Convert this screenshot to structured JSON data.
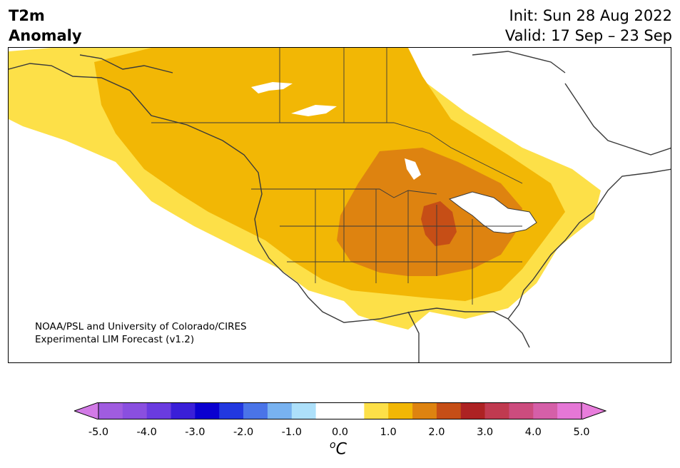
{
  "title": {
    "line1": "T2m",
    "line2": "Anomaly"
  },
  "forecast": {
    "init": "Init: Sun 28 Aug 2022",
    "valid": "Valid: 17 Sep – 23 Sep"
  },
  "credit": {
    "line1": "NOAA/PSL and University of Colorado/CIRES",
    "line2": "Experimental LIM Forecast (v1.2)"
  },
  "colorbar": {
    "unit_prefix": "o",
    "unit_symbol": "C",
    "ticks": [
      "-5.0",
      "-4.0",
      "-3.0",
      "-2.0",
      "-1.0",
      "0.0",
      "1.0",
      "2.0",
      "3.0",
      "4.0",
      "5.0"
    ],
    "bins": [
      {
        "range": [
          -5.0,
          -4.5
        ],
        "color": "#a05ce0"
      },
      {
        "range": [
          -4.5,
          -4.0
        ],
        "color": "#8a4fe0"
      },
      {
        "range": [
          -4.0,
          -3.5
        ],
        "color": "#6a3be0"
      },
      {
        "range": [
          -3.5,
          -3.0
        ],
        "color": "#3a1fd8"
      },
      {
        "range": [
          -3.0,
          -2.5
        ],
        "color": "#0a00d0"
      },
      {
        "range": [
          -2.5,
          -2.0
        ],
        "color": "#2238e0"
      },
      {
        "range": [
          -2.0,
          -1.5
        ],
        "color": "#4a74e8"
      },
      {
        "range": [
          -1.5,
          -1.0
        ],
        "color": "#78b2f0"
      },
      {
        "range": [
          -1.0,
          -0.5
        ],
        "color": "#ade0fa"
      },
      {
        "range": [
          -0.5,
          0.0
        ],
        "color": "#ffffff"
      },
      {
        "range": [
          0.0,
          0.5
        ],
        "color": "#ffffff"
      },
      {
        "range": [
          0.5,
          1.0
        ],
        "color": "#fde048"
      },
      {
        "range": [
          1.0,
          1.5
        ],
        "color": "#f2b705"
      },
      {
        "range": [
          1.5,
          2.0
        ],
        "color": "#de8310"
      },
      {
        "range": [
          2.0,
          2.5
        ],
        "color": "#c64e16"
      },
      {
        "range": [
          2.5,
          3.0
        ],
        "color": "#ad2223"
      },
      {
        "range": [
          3.0,
          3.5
        ],
        "color": "#c03a50"
      },
      {
        "range": [
          3.5,
          4.0
        ],
        "color": "#cc4c7e"
      },
      {
        "range": [
          4.0,
          4.5
        ],
        "color": "#d55fa8"
      },
      {
        "range": [
          4.5,
          5.0
        ],
        "color": "#e577d6"
      }
    ],
    "extend_low_color": "#d27ae6",
    "extend_high_color": "#e87ddc"
  },
  "map": {
    "region": "North America",
    "anomaly_colors": {
      "weak": "#fde048",
      "moderate": "#f2b705",
      "strong": "#de8310",
      "strongest": "#c64e16"
    },
    "outline_color": "#3a3a3a"
  }
}
